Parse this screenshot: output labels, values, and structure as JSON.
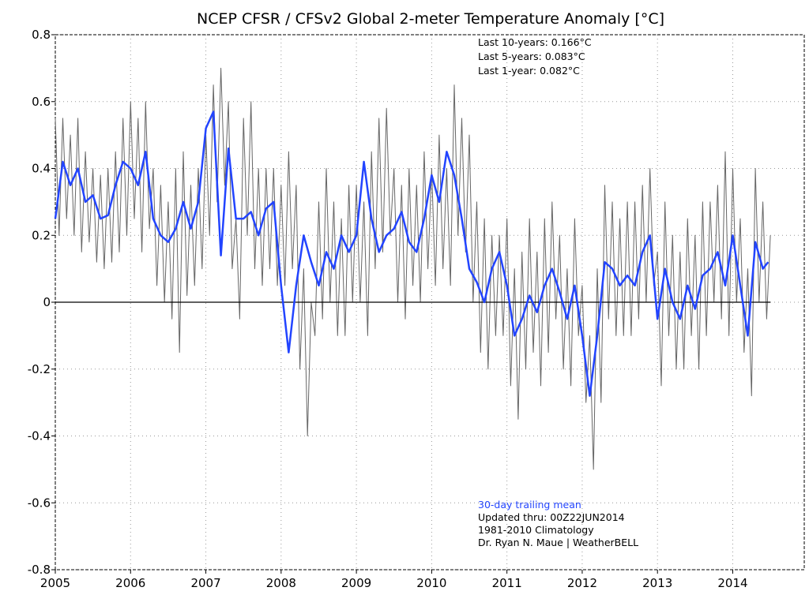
{
  "chart_data": {
    "type": "line",
    "title": "NCEP CFSR / CFSv2 Global 2-meter Temperature Anomaly [°C]",
    "annotations": [
      "Last 10-years: 0.166°C",
      "Last 5-years: 0.083°C",
      "Last 1-year:  0.082°C",
      "Updated thru: 00Z22JUN2014",
      "1981-2010 Climatology",
      "Dr. Ryan N. Maue | WeatherBELL"
    ],
    "xlim": [
      2005,
      2014.95
    ],
    "xticks": [
      2005,
      2006,
      2007,
      2008,
      2009,
      2010,
      2011,
      2012,
      2013,
      2014
    ],
    "ylim": [
      -0.8,
      0.8
    ],
    "yticks": [
      0.8,
      0.6,
      0.4,
      0.2,
      0,
      -0.2,
      -0.4,
      -0.6,
      -0.8
    ],
    "grid": true,
    "series": [
      {
        "color": "#666666",
        "x": [
          2005,
          2005.05,
          2005.1,
          2005.15,
          2005.2,
          2005.25,
          2005.3,
          2005.35,
          2005.4,
          2005.45,
          2005.5,
          2005.55,
          2005.6,
          2005.65,
          2005.7,
          2005.75,
          2005.8,
          2005.85,
          2005.9,
          2005.95,
          2006,
          2006.05,
          2006.1,
          2006.15,
          2006.2,
          2006.25,
          2006.3,
          2006.35,
          2006.4,
          2006.45,
          2006.5,
          2006.55,
          2006.6,
          2006.65,
          2006.7,
          2006.75,
          2006.8,
          2006.85,
          2006.9,
          2006.95,
          2007,
          2007.05,
          2007.1,
          2007.15,
          2007.2,
          2007.25,
          2007.3,
          2007.35,
          2007.4,
          2007.45,
          2007.5,
          2007.55,
          2007.6,
          2007.65,
          2007.7,
          2007.75,
          2007.8,
          2007.85,
          2007.9,
          2007.95,
          2008,
          2008.05,
          2008.1,
          2008.15,
          2008.2,
          2008.25,
          2008.3,
          2008.35,
          2008.4,
          2008.45,
          2008.5,
          2008.55,
          2008.6,
          2008.65,
          2008.7,
          2008.75,
          2008.8,
          2008.85,
          2008.9,
          2008.95,
          2009,
          2009.05,
          2009.1,
          2009.15,
          2009.2,
          2009.25,
          2009.3,
          2009.35,
          2009.4,
          2009.45,
          2009.5,
          2009.55,
          2009.6,
          2009.65,
          2009.7,
          2009.75,
          2009.8,
          2009.85,
          2009.9,
          2009.95,
          2010,
          2010.05,
          2010.1,
          2010.15,
          2010.2,
          2010.25,
          2010.3,
          2010.35,
          2010.4,
          2010.45,
          2010.5,
          2010.55,
          2010.6,
          2010.65,
          2010.7,
          2010.75,
          2010.8,
          2010.85,
          2010.9,
          2010.95,
          2011,
          2011.05,
          2011.1,
          2011.15,
          2011.2,
          2011.25,
          2011.3,
          2011.35,
          2011.4,
          2011.45,
          2011.5,
          2011.55,
          2011.6,
          2011.65,
          2011.7,
          2011.75,
          2011.8,
          2011.85,
          2011.9,
          2011.95,
          2012,
          2012.05,
          2012.1,
          2012.15,
          2012.2,
          2012.25,
          2012.3,
          2012.35,
          2012.4,
          2012.45,
          2012.5,
          2012.55,
          2012.6,
          2012.65,
          2012.7,
          2012.75,
          2012.8,
          2012.85,
          2012.9,
          2012.95,
          2013,
          2013.05,
          2013.1,
          2013.15,
          2013.2,
          2013.25,
          2013.3,
          2013.35,
          2013.4,
          2013.45,
          2013.5,
          2013.55,
          2013.6,
          2013.65,
          2013.7,
          2013.75,
          2013.8,
          2013.85,
          2013.9,
          2013.95,
          2014,
          2014.05,
          2014.1,
          2014.15,
          2014.2,
          2014.25,
          2014.3,
          2014.35,
          2014.4,
          2014.45,
          2014.5
        ],
        "values": [
          0.55,
          0.2,
          0.55,
          0.25,
          0.5,
          0.2,
          0.55,
          0.15,
          0.45,
          0.18,
          0.4,
          0.12,
          0.38,
          0.1,
          0.4,
          0.12,
          0.45,
          0.15,
          0.55,
          0.2,
          0.6,
          0.25,
          0.55,
          0.15,
          0.6,
          0.22,
          0.4,
          0.05,
          0.35,
          0,
          0.3,
          -0.05,
          0.4,
          -0.15,
          0.45,
          0.02,
          0.35,
          0.05,
          0.4,
          0.1,
          0.5,
          0.2,
          0.65,
          0.3,
          0.7,
          0.35,
          0.6,
          0.1,
          0.25,
          -0.05,
          0.55,
          0.2,
          0.6,
          0.1,
          0.4,
          0.05,
          0.4,
          0.1,
          0.4,
          0.05,
          0.35,
          0.05,
          0.45,
          0.1,
          0.35,
          -0.2,
          0.1,
          -0.4,
          0,
          -0.1,
          0.3,
          -0.05,
          0.4,
          0,
          0.3,
          -0.1,
          0.25,
          -0.1,
          0.35,
          0,
          0.35,
          0,
          0.3,
          -0.1,
          0.45,
          0.1,
          0.55,
          0.15,
          0.58,
          0.2,
          0.4,
          0,
          0.35,
          -0.05,
          0.4,
          0.05,
          0.35,
          0,
          0.45,
          0.1,
          0.4,
          0.05,
          0.5,
          0.1,
          0.4,
          0.05,
          0.65,
          0.2,
          0.55,
          0.15,
          0.5,
          0,
          0.3,
          -0.15,
          0.25,
          -0.2,
          0.2,
          -0.1,
          0.2,
          -0.1,
          0.25,
          -0.25,
          0.1,
          -0.35,
          0.15,
          -0.2,
          0.25,
          -0.15,
          0.15,
          -0.25,
          0.25,
          -0.15,
          0.3,
          -0.05,
          0.2,
          -0.2,
          0.1,
          -0.25,
          0.25,
          -0.1,
          0.05,
          -0.3,
          -0.1,
          -0.5,
          0.1,
          -0.3,
          0.35,
          -0.05,
          0.3,
          -0.1,
          0.25,
          -0.1,
          0.3,
          -0.1,
          0.3,
          -0.05,
          0.35,
          0,
          0.4,
          0.05,
          0.15,
          -0.25,
          0.3,
          -0.1,
          0.2,
          -0.2,
          0.15,
          -0.2,
          0.25,
          -0.1,
          0.2,
          -0.2,
          0.3,
          -0.1,
          0.3,
          0,
          0.35,
          -0.05,
          0.45,
          -0.1,
          0.4,
          0,
          0.25,
          -0.15,
          0.1,
          -0.28,
          0.4,
          0,
          0.3,
          -0.05,
          0.2
        ]
      },
      {
        "name": "30-day trailing mean",
        "color": "#2244ff",
        "x": [
          2005,
          2005.1,
          2005.2,
          2005.3,
          2005.4,
          2005.5,
          2005.6,
          2005.7,
          2005.8,
          2005.9,
          2006,
          2006.1,
          2006.2,
          2006.3,
          2006.4,
          2006.5,
          2006.6,
          2006.7,
          2006.8,
          2006.9,
          2007,
          2007.1,
          2007.2,
          2007.3,
          2007.4,
          2007.5,
          2007.6,
          2007.7,
          2007.8,
          2007.9,
          2008,
          2008.1,
          2008.2,
          2008.3,
          2008.4,
          2008.5,
          2008.6,
          2008.7,
          2008.8,
          2008.9,
          2009,
          2009.1,
          2009.2,
          2009.3,
          2009.4,
          2009.5,
          2009.6,
          2009.7,
          2009.8,
          2009.9,
          2010,
          2010.1,
          2010.2,
          2010.3,
          2010.4,
          2010.5,
          2010.6,
          2010.7,
          2010.8,
          2010.9,
          2011,
          2011.1,
          2011.2,
          2011.3,
          2011.4,
          2011.5,
          2011.6,
          2011.7,
          2011.8,
          2011.9,
          2012,
          2012.1,
          2012.2,
          2012.3,
          2012.4,
          2012.5,
          2012.6,
          2012.7,
          2012.8,
          2012.9,
          2013,
          2013.1,
          2013.2,
          2013.3,
          2013.4,
          2013.5,
          2013.6,
          2013.7,
          2013.8,
          2013.9,
          2014,
          2014.1,
          2014.2,
          2014.3,
          2014.4,
          2014.47
        ],
        "values": [
          0.25,
          0.42,
          0.35,
          0.4,
          0.3,
          0.32,
          0.25,
          0.26,
          0.35,
          0.42,
          0.4,
          0.35,
          0.45,
          0.25,
          0.2,
          0.18,
          0.22,
          0.3,
          0.22,
          0.3,
          0.52,
          0.57,
          0.14,
          0.46,
          0.25,
          0.25,
          0.27,
          0.2,
          0.28,
          0.3,
          0.05,
          -0.15,
          0.05,
          0.2,
          0.12,
          0.05,
          0.15,
          0.1,
          0.2,
          0.15,
          0.2,
          0.42,
          0.25,
          0.15,
          0.2,
          0.22,
          0.27,
          0.18,
          0.15,
          0.25,
          0.38,
          0.3,
          0.45,
          0.38,
          0.25,
          0.1,
          0.06,
          0,
          0.1,
          0.15,
          0.05,
          -0.1,
          -0.05,
          0.02,
          -0.03,
          0.05,
          0.1,
          0.03,
          -0.05,
          0.05,
          -0.1,
          -0.28,
          -0.1,
          0.12,
          0.1,
          0.05,
          0.08,
          0.05,
          0.15,
          0.2,
          -0.05,
          0.1,
          0,
          -0.05,
          0.05,
          -0.02,
          0.08,
          0.1,
          0.15,
          0.05,
          0.2,
          0.05,
          -0.1,
          0.18,
          0.1,
          0.12
        ]
      }
    ]
  }
}
